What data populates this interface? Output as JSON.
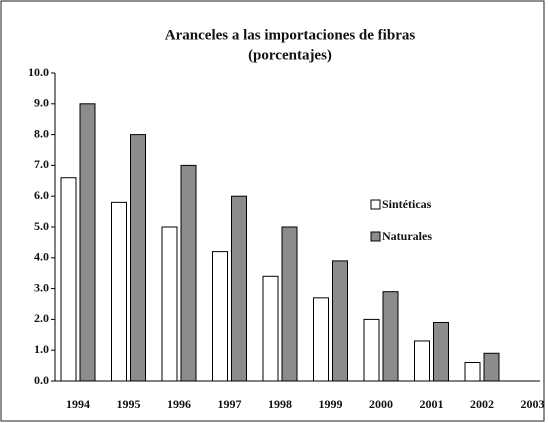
{
  "chart_data": {
    "type": "bar",
    "title": "Aranceles a las importaciones de fibras",
    "subtitle": "(porcentajes)",
    "categories": [
      "1994",
      "1995",
      "1996",
      "1997",
      "1998",
      "1999",
      "2000",
      "2001",
      "2002",
      "2003"
    ],
    "series": [
      {
        "name": "Sintéticas",
        "color": "#ffffff",
        "values": [
          6.6,
          5.8,
          5.0,
          4.2,
          3.4,
          2.7,
          2.0,
          1.3,
          0.6,
          0
        ]
      },
      {
        "name": "Naturales",
        "color": "#8c8c8c",
        "values": [
          9.0,
          8.0,
          7.0,
          6.0,
          5.0,
          3.9,
          2.9,
          1.9,
          0.9,
          0
        ]
      }
    ],
    "ylim": [
      0,
      10
    ],
    "yticks": [
      {
        "value": 0,
        "label": "0.0"
      },
      {
        "value": 1,
        "label": "1.0"
      },
      {
        "value": 2,
        "label": "2.0"
      },
      {
        "value": 3,
        "label": "3.0"
      },
      {
        "value": 4,
        "label": "4.0"
      },
      {
        "value": 5,
        "label": "5.0"
      },
      {
        "value": 6,
        "label": "6.0"
      },
      {
        "value": 7,
        "label": "7.0"
      },
      {
        "value": 8,
        "label": "8.0"
      },
      {
        "value": 9,
        "label": "9.0"
      },
      {
        "value": 10,
        "label": "10.0"
      }
    ],
    "legend": "right"
  }
}
